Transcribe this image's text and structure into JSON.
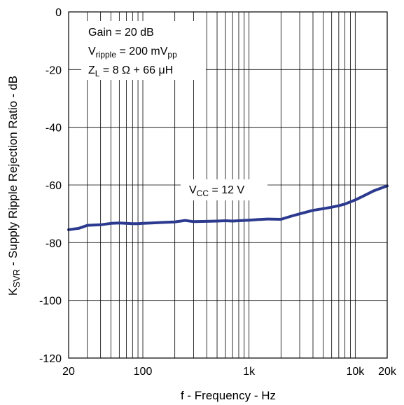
{
  "chart_data": {
    "type": "line",
    "x_scale": "log",
    "xlim": [
      20,
      20000
    ],
    "ylim": [
      -120,
      0
    ],
    "xlabel": "f - Frequency - Hz",
    "ylabel": {
      "main": "K",
      "sub": "SVR",
      "rest": " - Supply Ripple Rejection Ratio - dB"
    },
    "x_ticks": [
      {
        "value": 20,
        "label": "20"
      },
      {
        "value": 100,
        "label": "100"
      },
      {
        "value": 1000,
        "label": "1k"
      },
      {
        "value": 10000,
        "label": "10k"
      },
      {
        "value": 20000,
        "label": "20k"
      }
    ],
    "y_ticks": [
      {
        "value": 0,
        "label": "0"
      },
      {
        "value": -20,
        "label": "-20"
      },
      {
        "value": -40,
        "label": "-40"
      },
      {
        "value": -60,
        "label": "-60"
      },
      {
        "value": -80,
        "label": "-80"
      },
      {
        "value": -100,
        "label": "-100"
      },
      {
        "value": -120,
        "label": "-120"
      }
    ],
    "grid": true,
    "conditions": {
      "gain": "Gain = 20 dB",
      "vripple_main": "V",
      "vripple_sub": "ripple",
      "vripple_rest": " = 200 mV",
      "vripple_unit_sub": "pp",
      "zl_main": "Z",
      "zl_sub": "L",
      "zl_rest": " = 8 Ω + 66 μH"
    },
    "series": [
      {
        "name": "V_CC = 12 V",
        "label_main": "V",
        "label_sub": "CC",
        "label_rest": " = 12 V",
        "color": "#2b3a8f",
        "x": [
          20,
          25,
          30,
          40,
          50,
          60,
          70,
          80,
          90,
          100,
          120,
          150,
          200,
          250,
          300,
          400,
          500,
          600,
          700,
          800,
          1000,
          1200,
          1500,
          2000,
          2500,
          3000,
          4000,
          5000,
          6000,
          7000,
          8000,
          10000,
          12000,
          15000,
          20000
        ],
        "y": [
          -75.5,
          -75,
          -74,
          -73.8,
          -73.3,
          -73.2,
          -73.3,
          -73.4,
          -73.4,
          -73.3,
          -73.2,
          -73,
          -72.8,
          -72.3,
          -72.7,
          -72.6,
          -72.5,
          -72.4,
          -72.5,
          -72.4,
          -72.2,
          -72,
          -71.8,
          -71.9,
          -70.8,
          -70,
          -68.8,
          -68.2,
          -67.7,
          -67.2,
          -66.6,
          -65.2,
          -63.8,
          -62,
          -60.3
        ]
      }
    ]
  }
}
